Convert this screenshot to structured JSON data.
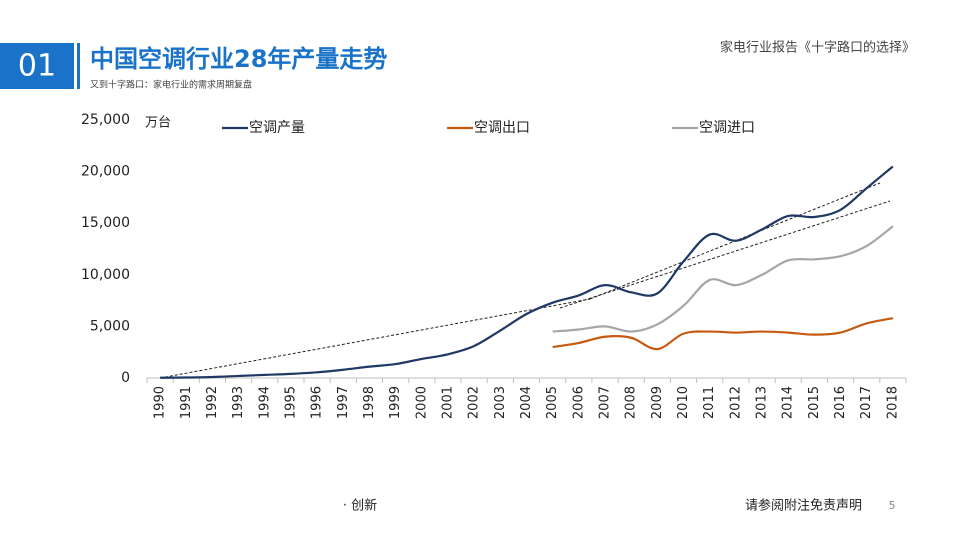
{
  "slide": {
    "number": "01",
    "title": "中国空调行业28年产量走势",
    "subtitle": "又到十字路口：家电行业的需求周期复盘",
    "report": "家电行业报告《十字路口的选择》",
    "footer_left": "· 创新",
    "footer_right": "请参阅附注免责声明",
    "page": "5"
  },
  "chart_data": {
    "type": "line",
    "y_label": "万台",
    "categories": [
      "1990",
      "1991",
      "1992",
      "1993",
      "1994",
      "1995",
      "1996",
      "1997",
      "1998",
      "1999",
      "2000",
      "2001",
      "2002",
      "2003",
      "2004",
      "2005",
      "2006",
      "2007",
      "2008",
      "2009",
      "2010",
      "2011",
      "2012",
      "2013",
      "2014",
      "2015",
      "2016",
      "2017",
      "2018"
    ],
    "series": [
      {
        "name": "空调产量",
        "color": "#1f3864",
        "values": [
          25,
          50,
          100,
          200,
          300,
          400,
          550,
          800,
          1100,
          1350,
          1850,
          2300,
          3100,
          4600,
          6200,
          7300,
          8000,
          9000,
          8300,
          8200,
          11300,
          13900,
          13300,
          14400,
          15700,
          15600,
          16300,
          18400,
          20500
        ]
      },
      {
        "name": "空调出口",
        "color": "#c55a11",
        "values": [
          null,
          null,
          null,
          null,
          null,
          null,
          null,
          null,
          null,
          null,
          null,
          null,
          null,
          null,
          null,
          3000,
          3400,
          4000,
          3900,
          2800,
          4300,
          4500,
          4400,
          4500,
          4400,
          4200,
          4400,
          5300,
          5800
        ]
      },
      {
        "name": "空调进口",
        "color": "#a6a6a6",
        "values": [
          null,
          null,
          null,
          null,
          null,
          null,
          null,
          null,
          null,
          null,
          null,
          null,
          null,
          null,
          null,
          4500,
          4700,
          5000,
          4500,
          5200,
          7000,
          9500,
          9000,
          10000,
          11400,
          11500,
          11800,
          12800,
          14700
        ]
      }
    ],
    "ylim": [
      0,
      25000
    ],
    "yticks": [
      0,
      {
        "value": 5000,
        "label": "5,000"
      },
      {
        "value": 10000,
        "label": "10,000"
      },
      {
        "value": 15000,
        "label": "15,000"
      },
      {
        "value": 20000,
        "label": "20,000"
      },
      {
        "value": 25000,
        "label": "25,000"
      }
    ]
  }
}
